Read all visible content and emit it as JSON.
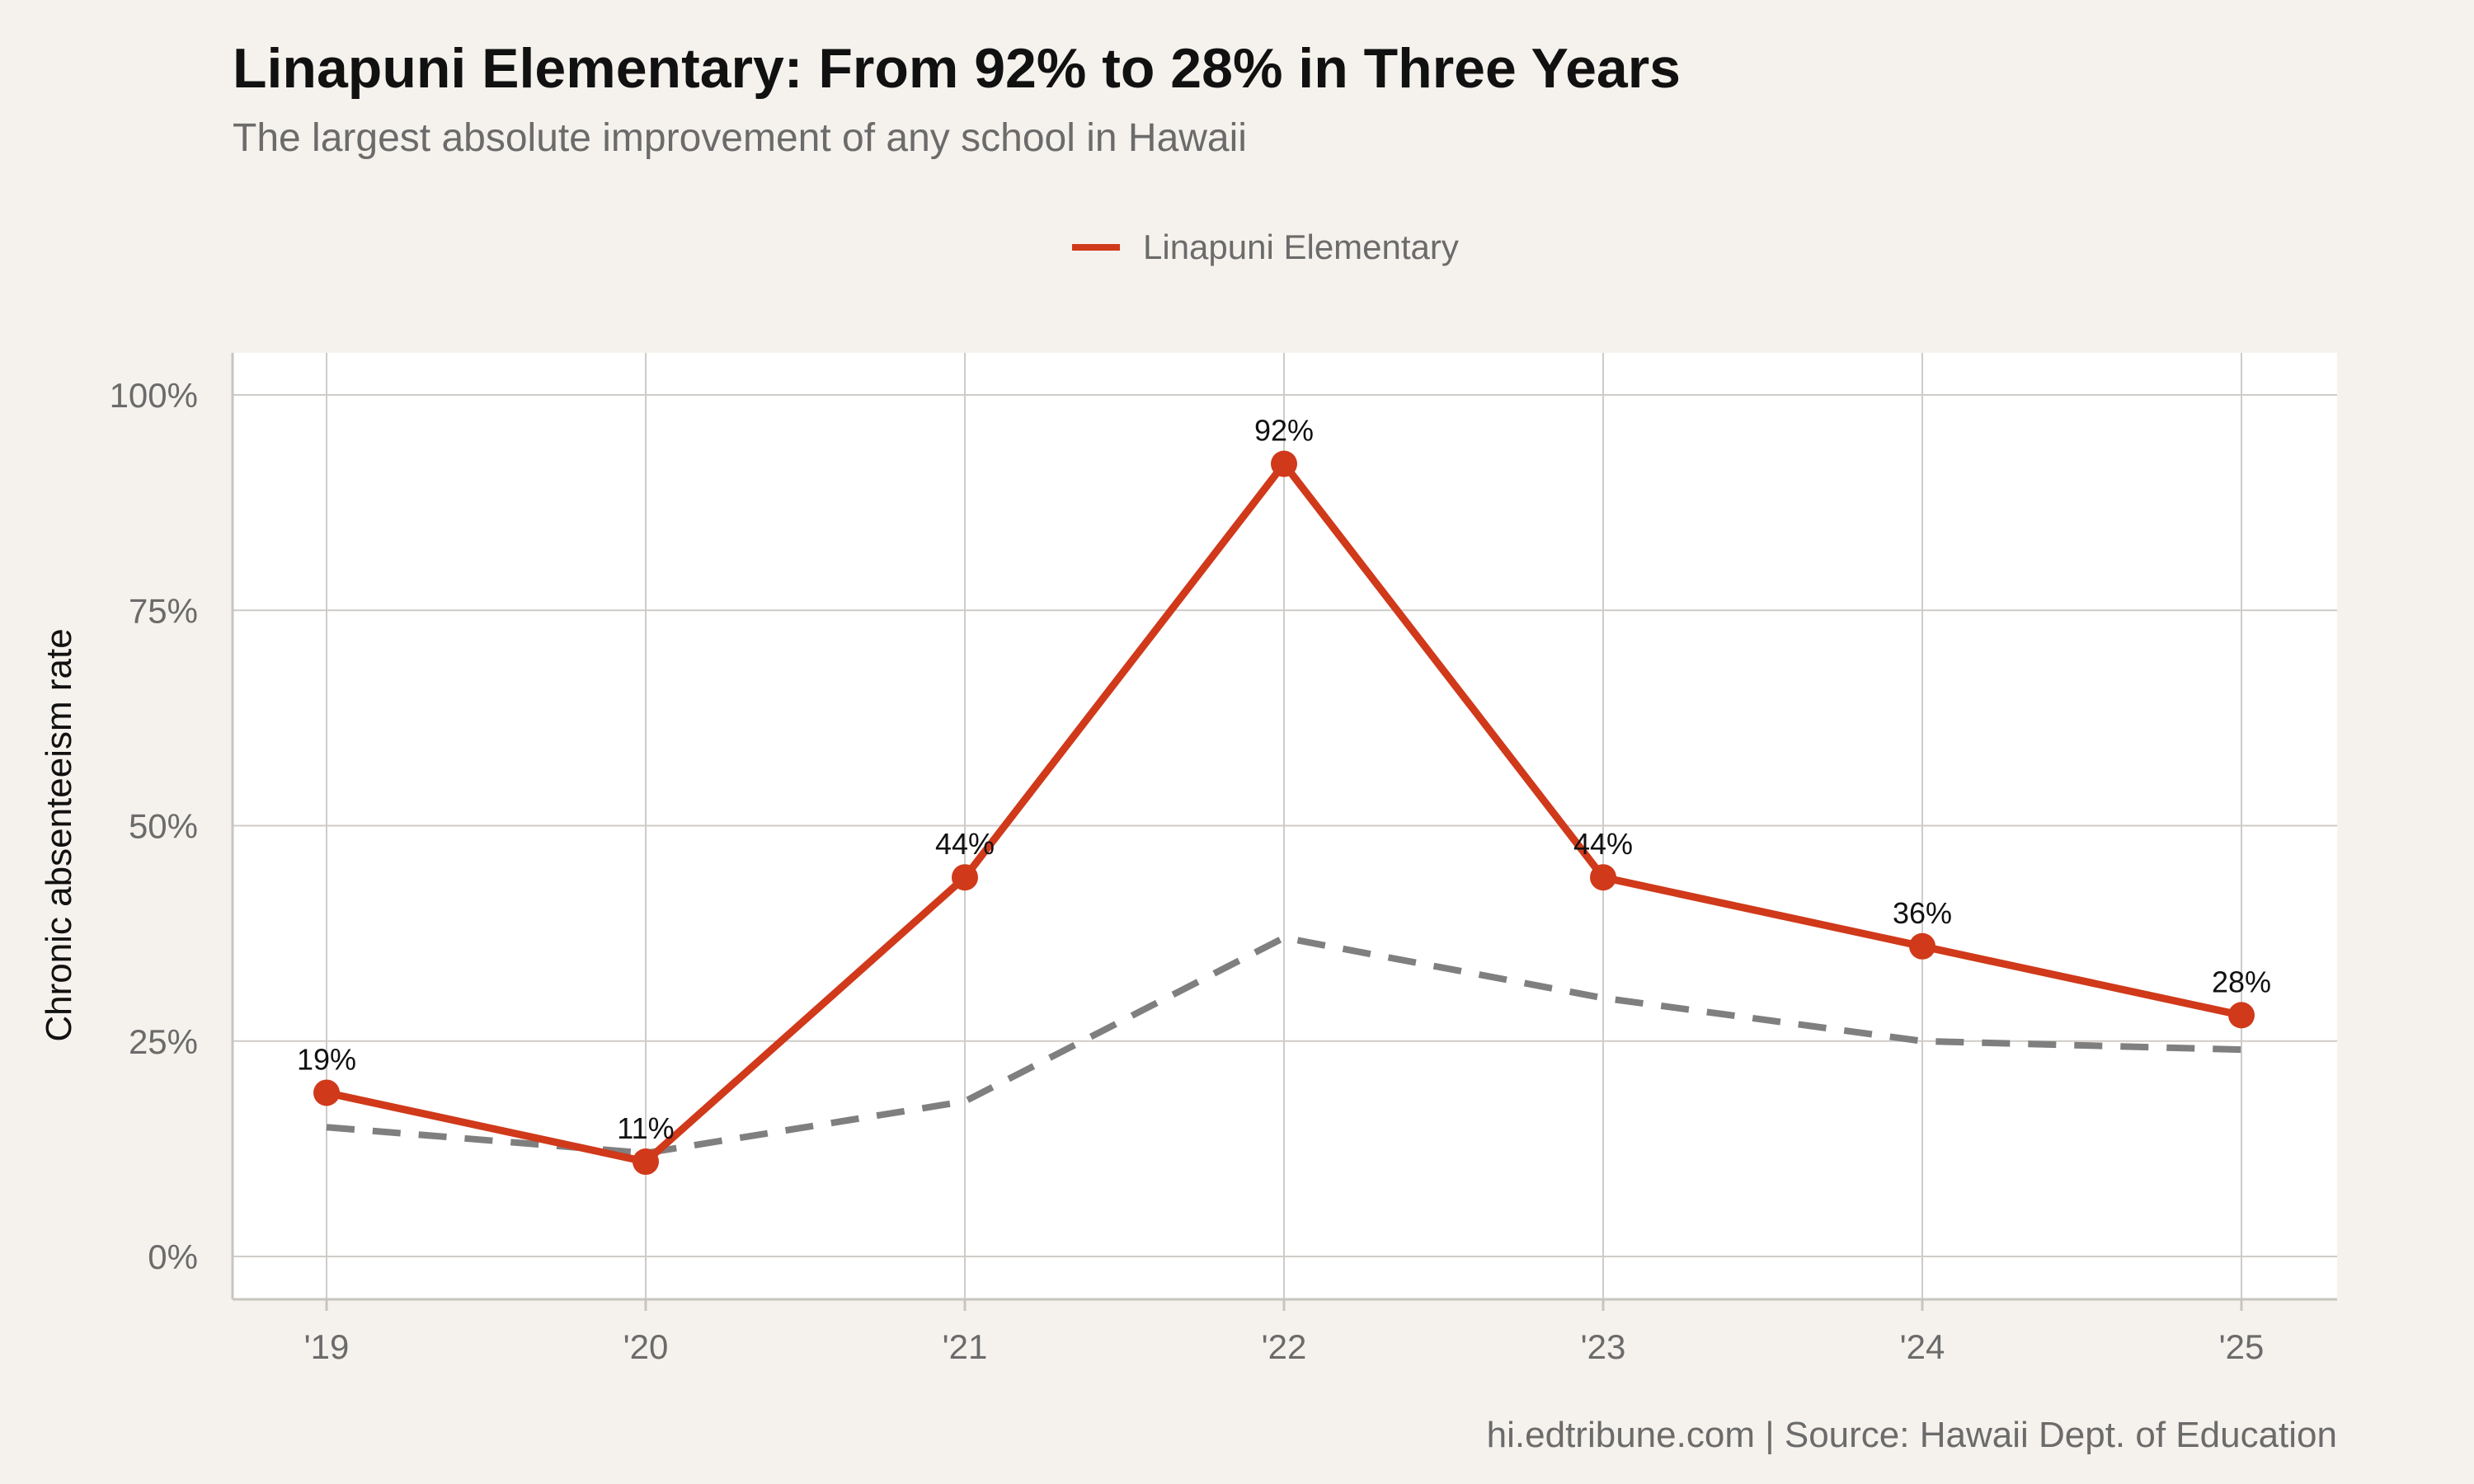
{
  "chart_data": {
    "type": "line",
    "title": "Linapuni Elementary: From 92% to 28% in Three Years",
    "subtitle": "The largest absolute improvement of any school in Hawaii",
    "xlabel": "",
    "ylabel": "Chronic absenteeism rate",
    "caption": "hi.edtribune.com | Source: Hawaii Dept. of Education",
    "categories": [
      "'19",
      "'20",
      "'21",
      "'22",
      "'23",
      "'24",
      "'25"
    ],
    "y_ticks": [
      "0%",
      "25%",
      "50%",
      "75%",
      "100%"
    ],
    "ylim": [
      0,
      100
    ],
    "grid": true,
    "legend_position": "top-center",
    "series": [
      {
        "name": "Linapuni Elementary",
        "values": [
          19,
          11,
          44,
          92,
          44,
          36,
          28
        ],
        "data_labels": [
          "19%",
          "11%",
          "44%",
          "92%",
          "44%",
          "36%",
          "28%"
        ],
        "color": "#d0391a",
        "style": "solid-with-markers"
      },
      {
        "values": [
          15,
          12,
          18,
          37,
          30,
          25,
          24
        ],
        "color": "#7f7f7f",
        "style": "dashed"
      }
    ]
  }
}
